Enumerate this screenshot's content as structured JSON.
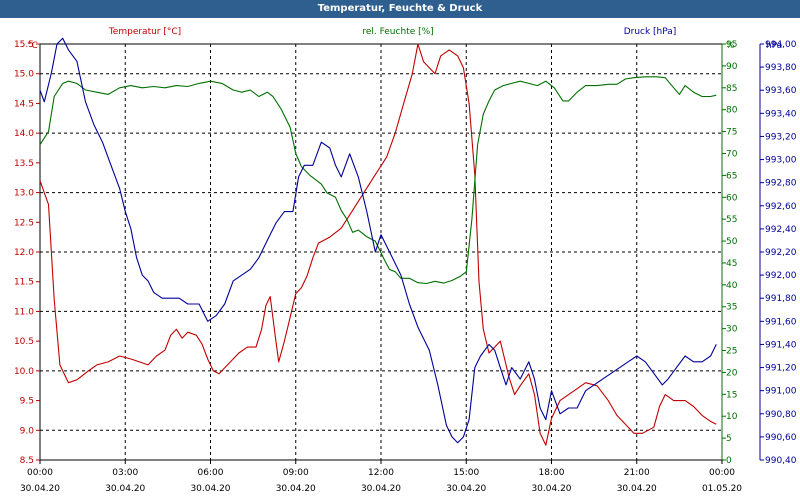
{
  "window": {
    "title": "Temperatur, Feuchte & Druck"
  },
  "colors": {
    "temperature": "#c00000",
    "humidity": "#007000",
    "pressure": "#00009a",
    "grid": "#000000",
    "titlebar": "#2e5f8f"
  },
  "chart_data": {
    "type": "line",
    "title": "Temperatur, Feuchte & Druck",
    "x_ticks": [
      {
        "h": 0,
        "time": "00:00",
        "date": "30.04.20"
      },
      {
        "h": 3,
        "time": "03:00",
        "date": "30.04.20"
      },
      {
        "h": 6,
        "time": "06:00",
        "date": "30.04.20"
      },
      {
        "h": 9,
        "time": "09:00",
        "date": "30.04.20"
      },
      {
        "h": 12,
        "time": "12:00",
        "date": "30.04.20"
      },
      {
        "h": 15,
        "time": "15:00",
        "date": "30.04.20"
      },
      {
        "h": 18,
        "time": "18:00",
        "date": "30.04.20"
      },
      {
        "h": 21,
        "time": "21:00",
        "date": "30.04.20"
      },
      {
        "h": 24,
        "time": "00:00",
        "date": "01.05.20"
      }
    ],
    "axes": {
      "temperature": {
        "label": "Temperatur [°C]",
        "unit": "°C",
        "min": 8.5,
        "max": 15.5,
        "step": 0.5,
        "ticks": [
          "15.5",
          "15.0",
          "14.5",
          "14.0",
          "13.5",
          "13.0",
          "12.5",
          "12.0",
          "11.5",
          "11.0",
          "10.5",
          "10.0",
          "9.5",
          "9.0",
          "8.5"
        ]
      },
      "humidity": {
        "label": "rel. Feuchte [%]",
        "unit": "%",
        "min": 0,
        "max": 95,
        "step": 5,
        "ticks": [
          "95",
          "90",
          "85",
          "80",
          "75",
          "70",
          "65",
          "60",
          "55",
          "50",
          "45",
          "40",
          "35",
          "30",
          "25",
          "20",
          "15",
          "10",
          "5",
          "0"
        ]
      },
      "pressure": {
        "label": "Druck [hPa]",
        "unit": "hPa",
        "min": 990.4,
        "max": 994.0,
        "step": 0.2,
        "ticks": [
          "994,00",
          "993,80",
          "993,60",
          "993,40",
          "993,20",
          "993,00",
          "992,80",
          "992,60",
          "992,40",
          "992,20",
          "992,00",
          "991,80",
          "991,60",
          "991,40",
          "991,20",
          "991,00",
          "990,80",
          "990,60",
          "990,40"
        ]
      }
    },
    "series": [
      {
        "name": "Temperatur",
        "axis": "temperature",
        "points": [
          [
            0,
            13.2
          ],
          [
            0.3,
            12.8
          ],
          [
            0.5,
            11.2
          ],
          [
            0.7,
            10.1
          ],
          [
            1.0,
            9.8
          ],
          [
            1.3,
            9.85
          ],
          [
            1.7,
            10.0
          ],
          [
            2.0,
            10.1
          ],
          [
            2.4,
            10.15
          ],
          [
            2.8,
            10.25
          ],
          [
            3.2,
            10.2
          ],
          [
            3.5,
            10.15
          ],
          [
            3.8,
            10.1
          ],
          [
            4.1,
            10.25
          ],
          [
            4.4,
            10.35
          ],
          [
            4.6,
            10.6
          ],
          [
            4.8,
            10.7
          ],
          [
            5.0,
            10.55
          ],
          [
            5.2,
            10.65
          ],
          [
            5.5,
            10.6
          ],
          [
            5.7,
            10.45
          ],
          [
            5.9,
            10.2
          ],
          [
            6.1,
            10.0
          ],
          [
            6.3,
            9.95
          ],
          [
            6.6,
            10.1
          ],
          [
            7.0,
            10.3
          ],
          [
            7.3,
            10.4
          ],
          [
            7.6,
            10.4
          ],
          [
            7.8,
            10.7
          ],
          [
            7.95,
            11.1
          ],
          [
            8.1,
            11.25
          ],
          [
            8.3,
            10.5
          ],
          [
            8.4,
            10.15
          ],
          [
            8.6,
            10.5
          ],
          [
            8.8,
            10.9
          ],
          [
            9.0,
            11.3
          ],
          [
            9.2,
            11.4
          ],
          [
            9.4,
            11.6
          ],
          [
            9.6,
            11.9
          ],
          [
            9.8,
            12.15
          ],
          [
            10.2,
            12.25
          ],
          [
            10.6,
            12.4
          ],
          [
            11.0,
            12.7
          ],
          [
            11.4,
            13.0
          ],
          [
            11.8,
            13.3
          ],
          [
            12.2,
            13.6
          ],
          [
            12.5,
            14.0
          ],
          [
            12.8,
            14.5
          ],
          [
            13.1,
            15.0
          ],
          [
            13.3,
            15.5
          ],
          [
            13.5,
            15.2
          ],
          [
            13.7,
            15.1
          ],
          [
            13.9,
            15.0
          ],
          [
            14.1,
            15.3
          ],
          [
            14.4,
            15.4
          ],
          [
            14.7,
            15.3
          ],
          [
            14.9,
            15.1
          ],
          [
            15.1,
            14.5
          ],
          [
            15.3,
            13.3
          ],
          [
            15.45,
            11.5
          ],
          [
            15.6,
            10.7
          ],
          [
            15.8,
            10.3
          ],
          [
            16.0,
            10.4
          ],
          [
            16.2,
            10.5
          ],
          [
            16.5,
            9.9
          ],
          [
            16.7,
            9.6
          ],
          [
            16.9,
            9.75
          ],
          [
            17.2,
            9.95
          ],
          [
            17.4,
            9.6
          ],
          [
            17.6,
            8.95
          ],
          [
            17.8,
            8.75
          ],
          [
            18.0,
            9.2
          ],
          [
            18.3,
            9.5
          ],
          [
            18.6,
            9.6
          ],
          [
            18.9,
            9.7
          ],
          [
            19.2,
            9.8
          ],
          [
            19.6,
            9.75
          ],
          [
            20.0,
            9.5
          ],
          [
            20.3,
            9.25
          ],
          [
            20.6,
            9.1
          ],
          [
            20.9,
            8.95
          ],
          [
            21.2,
            8.95
          ],
          [
            21.6,
            9.05
          ],
          [
            21.8,
            9.4
          ],
          [
            22.0,
            9.6
          ],
          [
            22.3,
            9.5
          ],
          [
            22.7,
            9.5
          ],
          [
            23.0,
            9.4
          ],
          [
            23.3,
            9.25
          ],
          [
            23.6,
            9.15
          ],
          [
            23.8,
            9.1
          ]
        ]
      },
      {
        "name": "rel. Feuchte",
        "axis": "humidity",
        "points": [
          [
            0,
            72
          ],
          [
            0.3,
            75
          ],
          [
            0.5,
            83
          ],
          [
            0.8,
            86
          ],
          [
            1.0,
            86.5
          ],
          [
            1.3,
            86
          ],
          [
            1.6,
            84.5
          ],
          [
            2.0,
            84
          ],
          [
            2.4,
            83.5
          ],
          [
            2.8,
            85
          ],
          [
            3.2,
            85.5
          ],
          [
            3.6,
            85
          ],
          [
            4.0,
            85.3
          ],
          [
            4.4,
            85
          ],
          [
            4.8,
            85.5
          ],
          [
            5.2,
            85.3
          ],
          [
            5.6,
            86
          ],
          [
            6.0,
            86.5
          ],
          [
            6.4,
            86
          ],
          [
            6.8,
            84.5
          ],
          [
            7.1,
            84
          ],
          [
            7.4,
            84.5
          ],
          [
            7.7,
            83
          ],
          [
            8.0,
            84
          ],
          [
            8.2,
            83
          ],
          [
            8.5,
            80
          ],
          [
            8.8,
            76
          ],
          [
            9.0,
            70
          ],
          [
            9.2,
            67
          ],
          [
            9.5,
            65
          ],
          [
            9.9,
            63
          ],
          [
            10.1,
            61
          ],
          [
            10.4,
            60
          ],
          [
            10.6,
            57
          ],
          [
            10.8,
            55
          ],
          [
            11.0,
            52
          ],
          [
            11.2,
            52.5
          ],
          [
            11.5,
            51
          ],
          [
            11.8,
            50
          ],
          [
            12.1,
            46
          ],
          [
            12.3,
            43.5
          ],
          [
            12.5,
            43
          ],
          [
            12.7,
            41.5
          ],
          [
            13.0,
            41.5
          ],
          [
            13.3,
            40.5
          ],
          [
            13.6,
            40.3
          ],
          [
            13.9,
            40.8
          ],
          [
            14.2,
            40.4
          ],
          [
            14.5,
            41
          ],
          [
            14.8,
            42
          ],
          [
            15.0,
            43
          ],
          [
            15.2,
            55
          ],
          [
            15.4,
            72
          ],
          [
            15.6,
            79
          ],
          [
            15.8,
            82
          ],
          [
            16.0,
            84.5
          ],
          [
            16.3,
            85.5
          ],
          [
            16.6,
            86
          ],
          [
            16.9,
            86.5
          ],
          [
            17.2,
            86
          ],
          [
            17.5,
            85.5
          ],
          [
            17.8,
            86.5
          ],
          [
            18.1,
            85
          ],
          [
            18.4,
            82
          ],
          [
            18.6,
            82
          ],
          [
            18.9,
            84
          ],
          [
            19.2,
            85.5
          ],
          [
            19.6,
            85.5
          ],
          [
            20.0,
            85.8
          ],
          [
            20.3,
            85.8
          ],
          [
            20.6,
            87
          ],
          [
            20.9,
            87.3
          ],
          [
            21.3,
            87.5
          ],
          [
            21.7,
            87.5
          ],
          [
            22.0,
            87.3
          ],
          [
            22.3,
            85
          ],
          [
            22.5,
            83.5
          ],
          [
            22.7,
            85.5
          ],
          [
            23.0,
            84
          ],
          [
            23.3,
            83
          ],
          [
            23.6,
            83
          ],
          [
            23.8,
            83.3
          ]
        ]
      },
      {
        "name": "Druck",
        "axis": "pressure",
        "points": [
          [
            0,
            993.6
          ],
          [
            0.15,
            993.5
          ],
          [
            0.4,
            993.75
          ],
          [
            0.6,
            994.0
          ],
          [
            0.8,
            994.05
          ],
          [
            1.0,
            993.95
          ],
          [
            1.3,
            993.85
          ],
          [
            1.6,
            993.5
          ],
          [
            1.9,
            993.3
          ],
          [
            2.2,
            993.15
          ],
          [
            2.5,
            992.95
          ],
          [
            2.8,
            992.75
          ],
          [
            3.0,
            992.55
          ],
          [
            3.2,
            992.4
          ],
          [
            3.4,
            992.15
          ],
          [
            3.6,
            992.0
          ],
          [
            3.8,
            991.95
          ],
          [
            4.0,
            991.85
          ],
          [
            4.3,
            991.8
          ],
          [
            4.6,
            991.8
          ],
          [
            4.9,
            991.8
          ],
          [
            5.2,
            991.75
          ],
          [
            5.6,
            991.75
          ],
          [
            5.9,
            991.6
          ],
          [
            6.2,
            991.65
          ],
          [
            6.5,
            991.75
          ],
          [
            6.8,
            991.95
          ],
          [
            7.1,
            992.0
          ],
          [
            7.4,
            992.05
          ],
          [
            7.7,
            992.15
          ],
          [
            8.0,
            992.3
          ],
          [
            8.3,
            992.45
          ],
          [
            8.6,
            992.55
          ],
          [
            8.9,
            992.55
          ],
          [
            9.1,
            992.85
          ],
          [
            9.3,
            992.95
          ],
          [
            9.6,
            992.95
          ],
          [
            9.9,
            993.15
          ],
          [
            10.2,
            993.1
          ],
          [
            10.4,
            992.95
          ],
          [
            10.6,
            992.85
          ],
          [
            10.9,
            993.05
          ],
          [
            11.2,
            992.85
          ],
          [
            11.5,
            992.55
          ],
          [
            11.8,
            992.2
          ],
          [
            12.0,
            992.35
          ],
          [
            12.2,
            992.25
          ],
          [
            12.4,
            992.15
          ],
          [
            12.7,
            992.0
          ],
          [
            13.0,
            991.75
          ],
          [
            13.3,
            991.55
          ],
          [
            13.7,
            991.35
          ],
          [
            14.0,
            991.05
          ],
          [
            14.3,
            990.7
          ],
          [
            14.5,
            990.6
          ],
          [
            14.7,
            990.55
          ],
          [
            14.9,
            990.6
          ],
          [
            15.1,
            990.75
          ],
          [
            15.3,
            991.2
          ],
          [
            15.5,
            991.3
          ],
          [
            15.8,
            991.4
          ],
          [
            16.0,
            991.35
          ],
          [
            16.2,
            991.2
          ],
          [
            16.4,
            991.05
          ],
          [
            16.6,
            991.2
          ],
          [
            16.9,
            991.1
          ],
          [
            17.2,
            991.25
          ],
          [
            17.4,
            991.1
          ],
          [
            17.6,
            990.85
          ],
          [
            17.8,
            990.75
          ],
          [
            18.0,
            991.0
          ],
          [
            18.3,
            990.8
          ],
          [
            18.6,
            990.85
          ],
          [
            18.9,
            990.85
          ],
          [
            19.2,
            991.0
          ],
          [
            19.5,
            991.05
          ],
          [
            19.8,
            991.1
          ],
          [
            20.1,
            991.15
          ],
          [
            20.4,
            991.2
          ],
          [
            20.7,
            991.25
          ],
          [
            21.0,
            991.3
          ],
          [
            21.3,
            991.25
          ],
          [
            21.6,
            991.15
          ],
          [
            21.9,
            991.05
          ],
          [
            22.1,
            991.1
          ],
          [
            22.4,
            991.2
          ],
          [
            22.7,
            991.3
          ],
          [
            23.0,
            991.25
          ],
          [
            23.3,
            991.25
          ],
          [
            23.6,
            991.3
          ],
          [
            23.8,
            991.4
          ]
        ]
      }
    ]
  }
}
